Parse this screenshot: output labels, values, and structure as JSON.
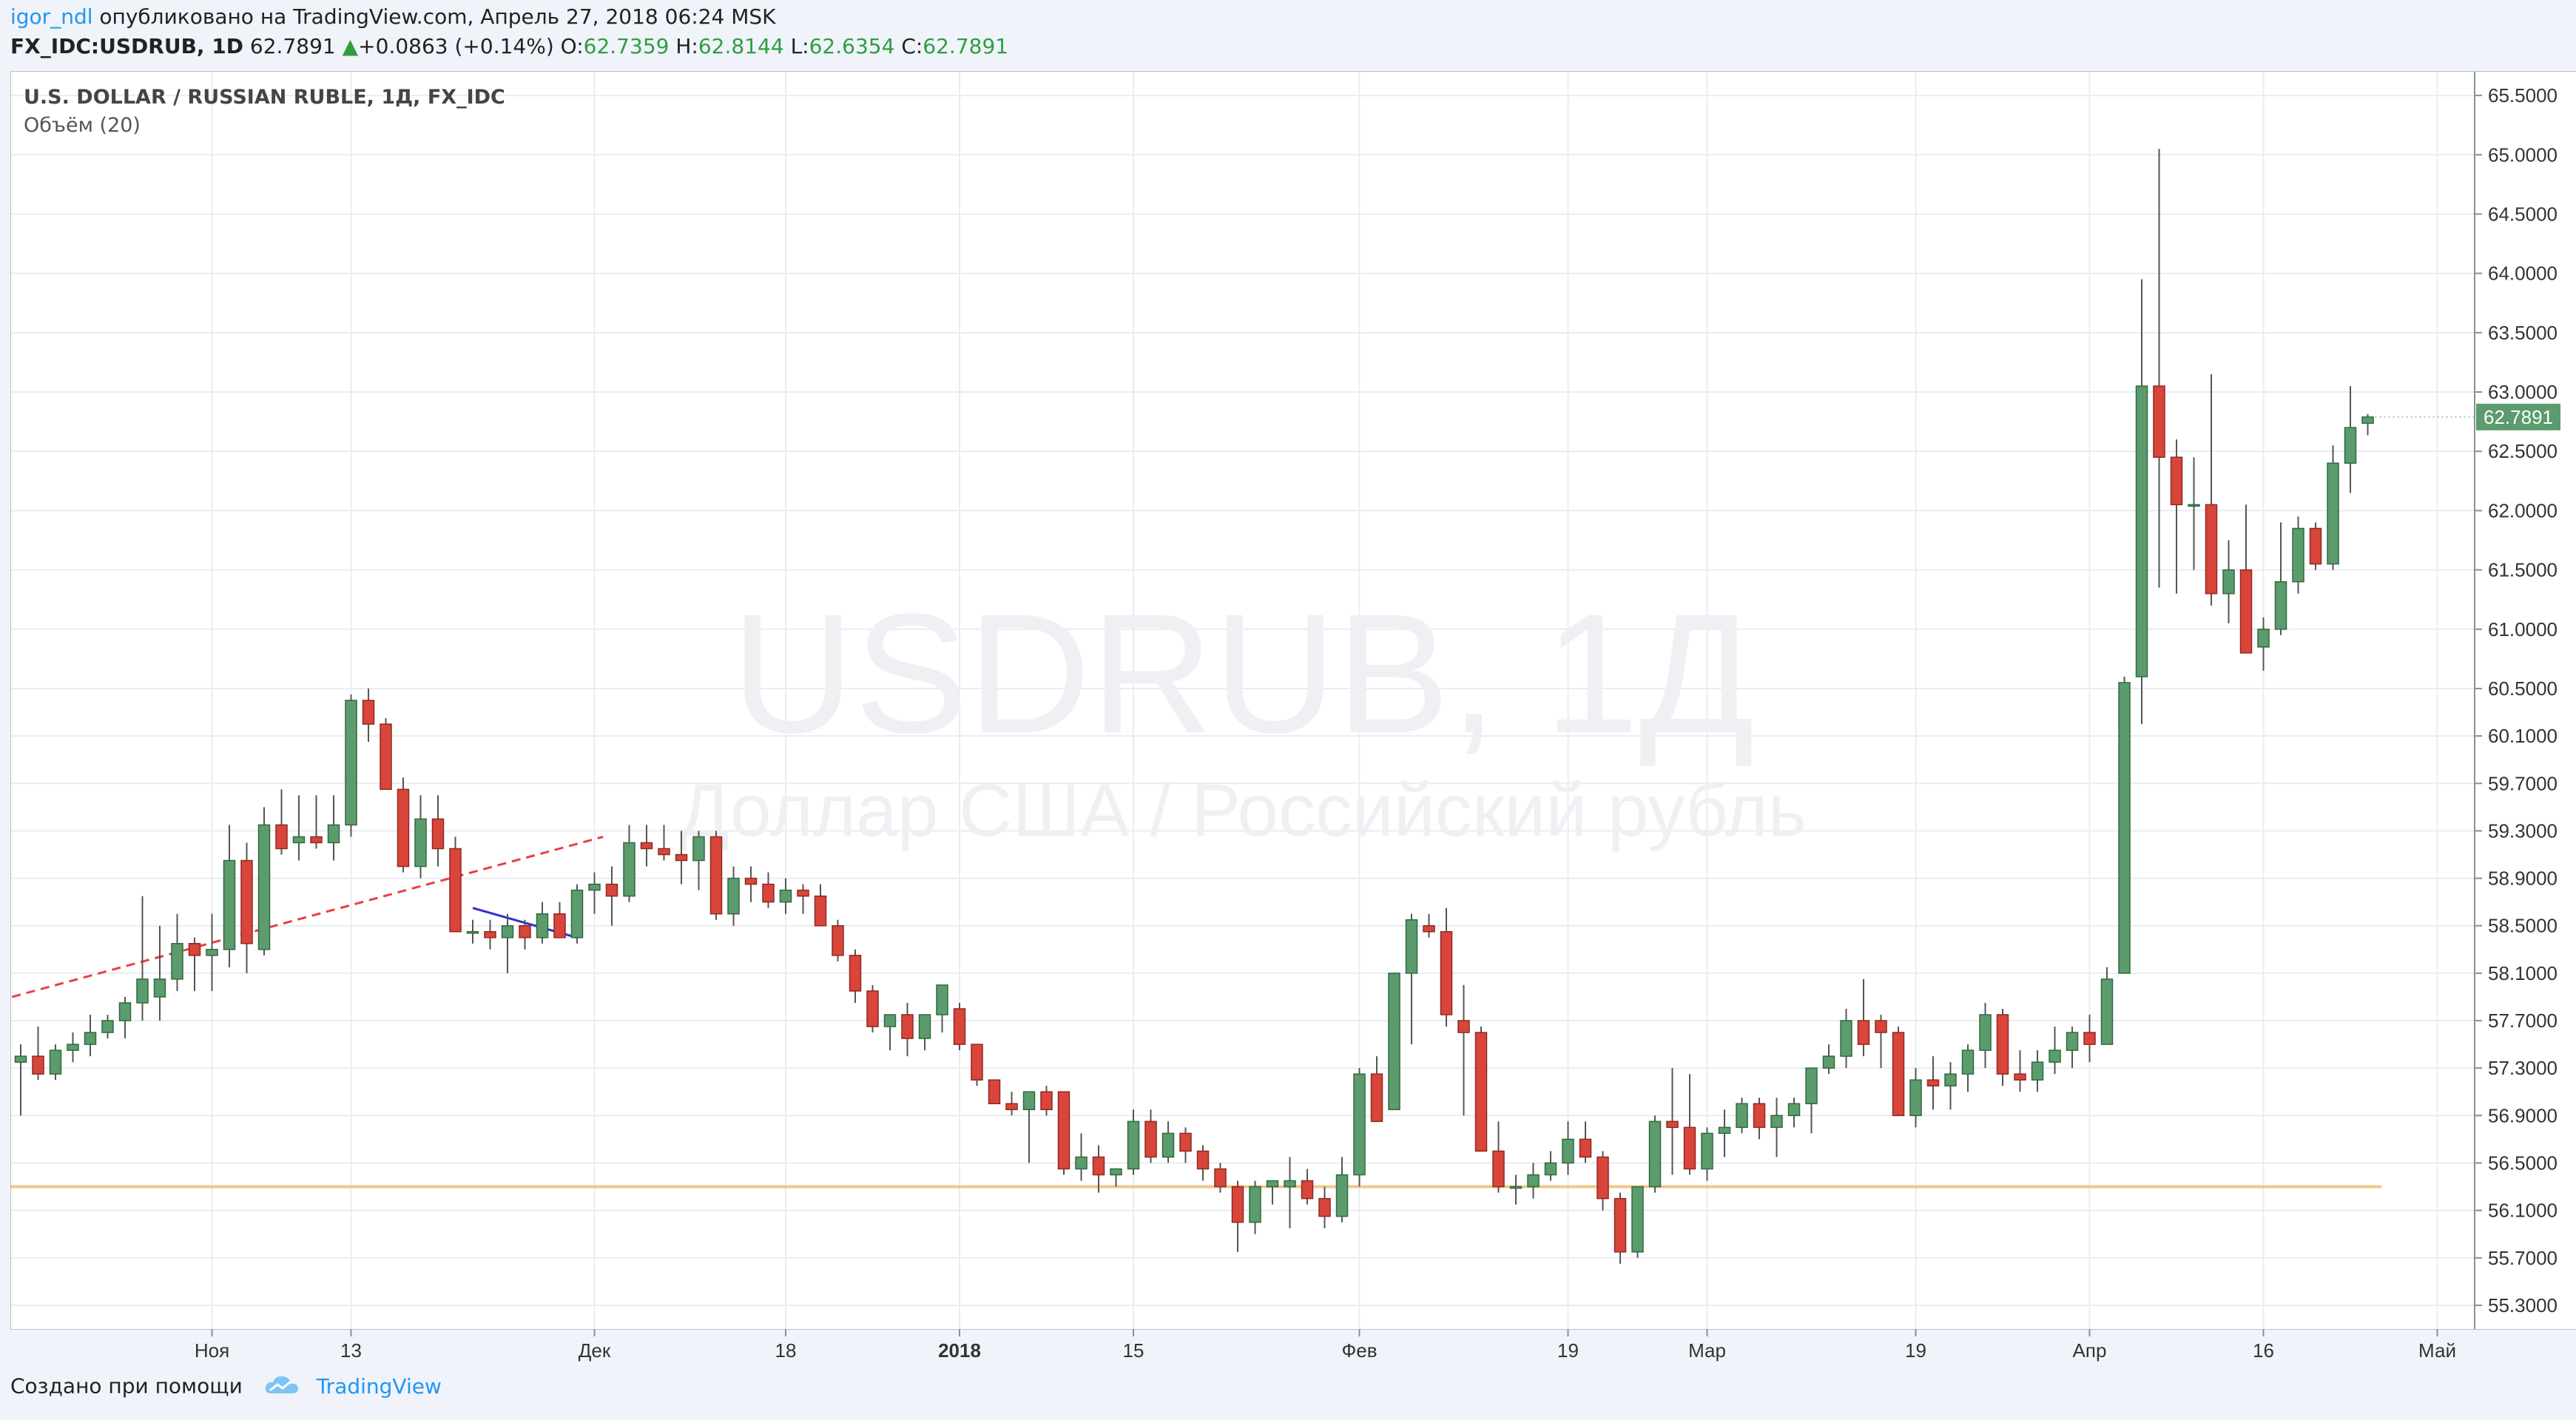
{
  "header": {
    "user": "igor_ndl",
    "published": "опубликовано на TradingView.com, Апрель 27, 2018 06:24 MSK",
    "symbol": "FX_IDC:USDRUB, 1D",
    "last": "62.7891",
    "change": "+0.0863 (+0.14%)",
    "o_label": "O:",
    "o_value": "62.7359",
    "h_label": "H:",
    "h_value": "62.8144",
    "l_label": "L:",
    "l_value": "62.6354",
    "c_label": "C:",
    "c_value": "62.7891"
  },
  "legend": {
    "title": "U.S. DOLLAR / RUSSIAN RUBLE, 1Д, FX_IDC",
    "volume": "Объём (20)"
  },
  "watermark": {
    "line1": "USDRUB, 1Д",
    "line2": "Доллар США / Российский рубль"
  },
  "footer": {
    "created_with": "Создано при помощи",
    "brand": "TradingView"
  },
  "colors": {
    "up": "#5b9b6d",
    "down": "#d9453a",
    "up_border": "#2f6b3f",
    "down_border": "#8e2a22",
    "price_label": "#5b9b6d",
    "support_line": "#f0c98a",
    "trend_line": "#e84040",
    "short_trend": "#3030d0"
  },
  "chart_data": {
    "type": "candlestick",
    "ylim": [
      55.1,
      65.7
    ],
    "yticks": [
      55.3,
      55.7,
      56.1,
      56.5,
      56.9,
      57.3,
      57.7,
      58.1,
      58.5,
      58.9,
      59.3,
      59.7,
      60.1,
      60.5,
      61.0,
      61.5,
      62.0,
      62.5,
      63.0,
      63.5,
      64.0,
      64.5,
      65.0,
      65.5
    ],
    "ytick_labels": [
      "55.3000",
      "55.7000",
      "56.1000",
      "56.5000",
      "56.9000",
      "57.3000",
      "57.7000",
      "58.1000",
      "58.5000",
      "58.9000",
      "59.3000",
      "59.7000",
      "60.1000",
      "60.5000",
      "61.0000",
      "61.5000",
      "62.0000",
      "62.5000",
      "63.0000",
      "63.5000",
      "64.0000",
      "64.5000",
      "65.0000",
      "65.5000"
    ],
    "xtick_labels": [
      {
        "label": "Ноя",
        "i": 11,
        "bold": false
      },
      {
        "label": "13",
        "i": 19,
        "bold": false
      },
      {
        "label": "Дек",
        "i": 33,
        "bold": false
      },
      {
        "label": "18",
        "i": 44,
        "bold": false
      },
      {
        "label": "2018",
        "i": 54,
        "bold": true
      },
      {
        "label": "15",
        "i": 64,
        "bold": false
      },
      {
        "label": "Фев",
        "i": 77,
        "bold": false
      },
      {
        "label": "19",
        "i": 89,
        "bold": false
      },
      {
        "label": "Мар",
        "i": 97,
        "bold": false
      },
      {
        "label": "19",
        "i": 109,
        "bold": false
      },
      {
        "label": "Апр",
        "i": 119,
        "bold": false
      },
      {
        "label": "16",
        "i": 129,
        "bold": false
      },
      {
        "label": "Май",
        "i": 139,
        "bold": false
      }
    ],
    "last_price": 62.7891,
    "last_price_label": "62.7891",
    "support_level": 56.3,
    "trend_line": {
      "i1": -0.5,
      "v1": 57.9,
      "i2": 33.5,
      "v2": 59.25
    },
    "short_trend": {
      "i1": 26,
      "v1": 58.65,
      "i2": 32,
      "v2": 58.4
    },
    "candles": [
      [
        57.35,
        57.5,
        56.9,
        57.4
      ],
      [
        57.4,
        57.65,
        57.2,
        57.25
      ],
      [
        57.25,
        57.5,
        57.2,
        57.45
      ],
      [
        57.45,
        57.6,
        57.35,
        57.5
      ],
      [
        57.5,
        57.75,
        57.4,
        57.6
      ],
      [
        57.6,
        57.75,
        57.55,
        57.7
      ],
      [
        57.7,
        57.9,
        57.55,
        57.85
      ],
      [
        57.85,
        58.75,
        57.7,
        58.05
      ],
      [
        57.9,
        58.5,
        57.7,
        58.05
      ],
      [
        58.05,
        58.6,
        57.95,
        58.35
      ],
      [
        58.35,
        58.4,
        57.95,
        58.25
      ],
      [
        58.25,
        58.6,
        57.95,
        58.3
      ],
      [
        58.3,
        59.35,
        58.15,
        59.05
      ],
      [
        59.05,
        59.2,
        58.1,
        58.35
      ],
      [
        58.3,
        59.5,
        58.25,
        59.35
      ],
      [
        59.35,
        59.65,
        59.1,
        59.15
      ],
      [
        59.2,
        59.6,
        59.05,
        59.25
      ],
      [
        59.25,
        59.6,
        59.15,
        59.2
      ],
      [
        59.2,
        59.6,
        59.05,
        59.35
      ],
      [
        59.35,
        60.45,
        59.25,
        60.4
      ],
      [
        60.4,
        60.5,
        60.05,
        60.2
      ],
      [
        60.2,
        60.25,
        59.65,
        59.65
      ],
      [
        59.65,
        59.75,
        58.95,
        59.0
      ],
      [
        59.0,
        59.6,
        58.9,
        59.4
      ],
      [
        59.4,
        59.6,
        59.0,
        59.15
      ],
      [
        59.15,
        59.25,
        58.45,
        58.45
      ],
      [
        58.45,
        58.55,
        58.35,
        58.45
      ],
      [
        58.45,
        58.55,
        58.3,
        58.4
      ],
      [
        58.4,
        58.6,
        58.1,
        58.5
      ],
      [
        58.5,
        58.55,
        58.3,
        58.4
      ],
      [
        58.4,
        58.7,
        58.35,
        58.6
      ],
      [
        58.6,
        58.7,
        58.4,
        58.4
      ],
      [
        58.4,
        58.85,
        58.35,
        58.8
      ],
      [
        58.8,
        58.95,
        58.6,
        58.85
      ],
      [
        58.85,
        59.0,
        58.5,
        58.75
      ],
      [
        58.75,
        59.35,
        58.7,
        59.2
      ],
      [
        59.2,
        59.35,
        59.0,
        59.15
      ],
      [
        59.15,
        59.35,
        59.05,
        59.1
      ],
      [
        59.1,
        59.3,
        58.85,
        59.05
      ],
      [
        59.05,
        59.3,
        58.8,
        59.25
      ],
      [
        59.25,
        59.3,
        58.55,
        58.6
      ],
      [
        58.6,
        59.0,
        58.5,
        58.9
      ],
      [
        58.9,
        59.0,
        58.7,
        58.85
      ],
      [
        58.85,
        58.95,
        58.65,
        58.7
      ],
      [
        58.7,
        58.9,
        58.6,
        58.8
      ],
      [
        58.8,
        58.85,
        58.6,
        58.75
      ],
      [
        58.75,
        58.85,
        58.5,
        58.5
      ],
      [
        58.5,
        58.55,
        58.2,
        58.25
      ],
      [
        58.25,
        58.3,
        57.85,
        57.95
      ],
      [
        57.95,
        58.0,
        57.6,
        57.65
      ],
      [
        57.65,
        57.75,
        57.45,
        57.75
      ],
      [
        57.75,
        57.85,
        57.4,
        57.55
      ],
      [
        57.55,
        57.75,
        57.45,
        57.75
      ],
      [
        57.75,
        58.0,
        57.6,
        58.0
      ],
      [
        57.8,
        57.85,
        57.45,
        57.5
      ],
      [
        57.5,
        57.5,
        57.15,
        57.2
      ],
      [
        57.2,
        57.2,
        57.0,
        57.0
      ],
      [
        57.0,
        57.1,
        56.9,
        56.95
      ],
      [
        56.95,
        57.1,
        56.5,
        57.1
      ],
      [
        57.1,
        57.15,
        56.9,
        56.95
      ],
      [
        57.1,
        57.1,
        56.4,
        56.45
      ],
      [
        56.45,
        56.75,
        56.35,
        56.55
      ],
      [
        56.55,
        56.65,
        56.25,
        56.4
      ],
      [
        56.4,
        56.45,
        56.3,
        56.45
      ],
      [
        56.45,
        56.95,
        56.4,
        56.85
      ],
      [
        56.85,
        56.95,
        56.5,
        56.55
      ],
      [
        56.55,
        56.85,
        56.5,
        56.75
      ],
      [
        56.75,
        56.8,
        56.5,
        56.6
      ],
      [
        56.6,
        56.65,
        56.35,
        56.45
      ],
      [
        56.45,
        56.5,
        56.25,
        56.3
      ],
      [
        56.3,
        56.35,
        55.75,
        56.0
      ],
      [
        56.0,
        56.35,
        55.9,
        56.3
      ],
      [
        56.3,
        56.35,
        56.15,
        56.35
      ],
      [
        56.3,
        56.55,
        55.95,
        56.35
      ],
      [
        56.35,
        56.45,
        56.15,
        56.2
      ],
      [
        56.2,
        56.3,
        55.95,
        56.05
      ],
      [
        56.05,
        56.55,
        56.0,
        56.4
      ],
      [
        56.4,
        57.3,
        56.3,
        57.25
      ],
      [
        57.25,
        57.4,
        56.85,
        56.85
      ],
      [
        56.95,
        58.1,
        56.95,
        58.1
      ],
      [
        58.1,
        58.6,
        57.5,
        58.55
      ],
      [
        58.5,
        58.6,
        58.4,
        58.45
      ],
      [
        58.45,
        58.65,
        57.65,
        57.75
      ],
      [
        57.7,
        58.0,
        56.9,
        57.6
      ],
      [
        57.6,
        57.65,
        56.6,
        56.6
      ],
      [
        56.6,
        56.85,
        56.25,
        56.3
      ],
      [
        56.3,
        56.4,
        56.15,
        56.3
      ],
      [
        56.3,
        56.5,
        56.2,
        56.4
      ],
      [
        56.4,
        56.6,
        56.35,
        56.5
      ],
      [
        56.5,
        56.85,
        56.4,
        56.7
      ],
      [
        56.7,
        56.85,
        56.5,
        56.55
      ],
      [
        56.55,
        56.6,
        56.1,
        56.2
      ],
      [
        56.2,
        56.25,
        55.65,
        55.75
      ],
      [
        55.75,
        56.3,
        55.7,
        56.3
      ],
      [
        56.3,
        56.9,
        56.25,
        56.85
      ],
      [
        56.85,
        57.3,
        56.4,
        56.8
      ],
      [
        56.8,
        57.25,
        56.4,
        56.45
      ],
      [
        56.45,
        56.8,
        56.35,
        56.75
      ],
      [
        56.75,
        56.95,
        56.55,
        56.8
      ],
      [
        56.8,
        57.05,
        56.75,
        57.0
      ],
      [
        57.0,
        57.05,
        56.7,
        56.8
      ],
      [
        56.8,
        57.05,
        56.55,
        56.9
      ],
      [
        56.9,
        57.05,
        56.8,
        57.0
      ],
      [
        57.0,
        57.3,
        56.75,
        57.3
      ],
      [
        57.3,
        57.5,
        57.25,
        57.4
      ],
      [
        57.4,
        57.8,
        57.3,
        57.7
      ],
      [
        57.7,
        58.05,
        57.4,
        57.5
      ],
      [
        57.7,
        57.75,
        57.3,
        57.6
      ],
      [
        57.6,
        57.65,
        56.95,
        56.9
      ],
      [
        56.9,
        57.3,
        56.8,
        57.2
      ],
      [
        57.2,
        57.4,
        56.95,
        57.15
      ],
      [
        57.15,
        57.35,
        56.95,
        57.25
      ],
      [
        57.25,
        57.5,
        57.1,
        57.45
      ],
      [
        57.45,
        57.85,
        57.3,
        57.75
      ],
      [
        57.75,
        57.8,
        57.15,
        57.25
      ],
      [
        57.25,
        57.45,
        57.1,
        57.2
      ],
      [
        57.2,
        57.45,
        57.1,
        57.35
      ],
      [
        57.35,
        57.65,
        57.25,
        57.45
      ],
      [
        57.45,
        57.65,
        57.3,
        57.6
      ],
      [
        57.6,
        57.75,
        57.35,
        57.5
      ],
      [
        57.5,
        58.15,
        57.5,
        58.05
      ],
      [
        58.1,
        60.6,
        58.1,
        60.55
      ],
      [
        60.6,
        63.95,
        60.2,
        63.05
      ],
      [
        63.05,
        65.05,
        61.35,
        62.45
      ],
      [
        62.45,
        62.6,
        61.3,
        62.05
      ],
      [
        62.05,
        62.45,
        61.5,
        62.05
      ],
      [
        62.05,
        63.15,
        61.2,
        61.3
      ],
      [
        61.3,
        61.75,
        61.05,
        61.5
      ],
      [
        61.5,
        62.05,
        60.85,
        60.8
      ],
      [
        60.85,
        61.1,
        60.65,
        61.0
      ],
      [
        61.0,
        61.9,
        60.95,
        61.4
      ],
      [
        61.4,
        61.95,
        61.3,
        61.85
      ],
      [
        61.85,
        61.9,
        61.5,
        61.55
      ],
      [
        61.55,
        62.55,
        61.5,
        62.4
      ],
      [
        62.4,
        63.05,
        62.15,
        62.7
      ],
      [
        62.7359,
        62.8144,
        62.6354,
        62.7891
      ]
    ]
  }
}
